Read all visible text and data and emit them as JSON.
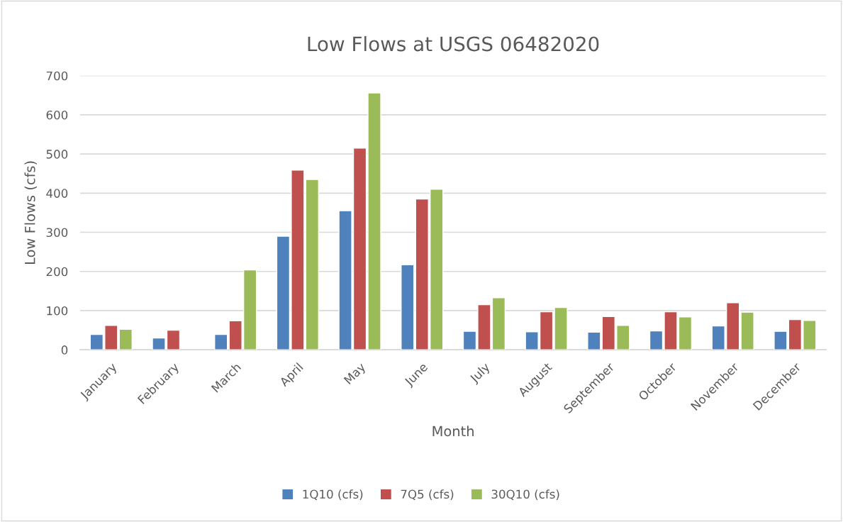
{
  "chart_data": {
    "type": "bar",
    "title": "Low Flows at USGS 06482020",
    "xlabel": "Month",
    "ylabel": "Low Flows (cfs)",
    "categories": [
      "January",
      "February",
      "March",
      "April",
      "May",
      "June",
      "July",
      "August",
      "September",
      "October",
      "November",
      "December"
    ],
    "series": [
      {
        "name": "1Q10 (cfs)",
        "color": "#4f81bd",
        "values": [
          39,
          30,
          39,
          290,
          355,
          217,
          47,
          46,
          45,
          48,
          61,
          47
        ]
      },
      {
        "name": "7Q5 (cfs)",
        "color": "#c0504d",
        "values": [
          62,
          50,
          74,
          459,
          515,
          385,
          115,
          97,
          85,
          97,
          120,
          77
        ]
      },
      {
        "name": "30Q10 (cfs)",
        "color": "#9bbb59",
        "values": [
          52,
          null,
          204,
          435,
          656,
          410,
          133,
          108,
          62,
          84,
          96,
          75
        ]
      }
    ],
    "ylim": [
      0,
      700
    ],
    "yticks": [
      0,
      100,
      200,
      300,
      400,
      500,
      600,
      700
    ],
    "grid": "y",
    "legend": "bottom"
  }
}
